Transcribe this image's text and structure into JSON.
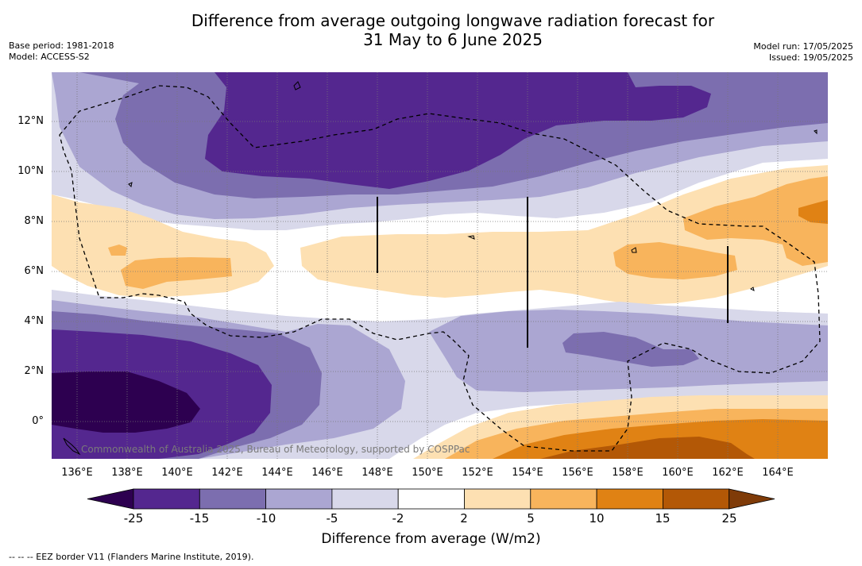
{
  "title_line1": "Difference from average outgoing longwave radiation forecast for",
  "title_line2": "31 May to 6 June 2025",
  "meta_left": [
    "Base period: 1981-2018",
    "Model: ACCESS-S2"
  ],
  "meta_right": [
    "Model run: 17/05/2025",
    "Issued: 19/05/2025"
  ],
  "credit": "Commonwealth of Australia 2025, Bureau of Meteorology, supported by COSPPac",
  "lat_labels": [
    "12°N",
    "10°N",
    "8°N",
    "6°N",
    "4°N",
    "2°N",
    "0°"
  ],
  "lon_labels": [
    "136°E",
    "138°E",
    "140°E",
    "142°E",
    "144°E",
    "146°E",
    "148°E",
    "150°E",
    "152°E",
    "154°E",
    "156°E",
    "158°E",
    "160°E",
    "162°E",
    "164°E"
  ],
  "colorbar": {
    "title": "Difference from average (W/m2)",
    "ticks": [
      "-25",
      "-15",
      "-10",
      "-5",
      "-2",
      "2",
      "5",
      "10",
      "15",
      "25"
    ],
    "colors": [
      "#2d0050",
      "#54278f",
      "#7c6eaf",
      "#aba6d2",
      "#d8d8ea",
      "#ffffff",
      "#fde0b2",
      "#f8b45c",
      "#e08214",
      "#b35806",
      "#7f3b08"
    ]
  },
  "footnote": "-- -- -- EEZ border V11 (Flanders Marine Institute, 2019)."
}
